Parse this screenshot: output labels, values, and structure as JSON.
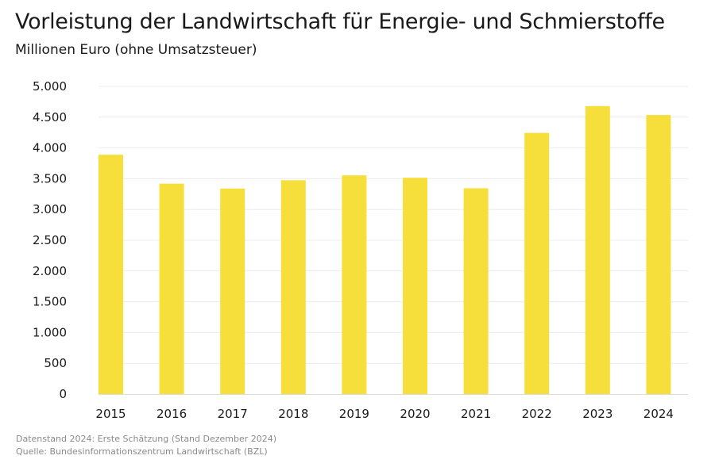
{
  "chart_data": {
    "type": "bar",
    "title": "Vorleistung der Landwirtschaft für Energie- und Schmierstoffe",
    "subtitle": "Millionen Euro (ohne Umsatzsteuer)",
    "xlabel": "",
    "ylabel": "",
    "categories": [
      "2015",
      "2016",
      "2017",
      "2018",
      "2019",
      "2020",
      "2021",
      "2022",
      "2023",
      "2024"
    ],
    "values": [
      3890,
      3420,
      3340,
      3475,
      3555,
      3515,
      3345,
      4245,
      4680,
      4535
    ],
    "ylim": [
      0,
      5000
    ],
    "yticks": [
      0,
      500,
      1000,
      1500,
      2000,
      2500,
      3000,
      3500,
      4000,
      4500,
      5000
    ],
    "ytick_labels": [
      "0",
      "500",
      "1.000",
      "1.500",
      "2.000",
      "2.500",
      "3.000",
      "3.500",
      "4.000",
      "4.500",
      "5.000"
    ],
    "grid": true,
    "legend": "none",
    "bar_color": "#f7df3b"
  },
  "footer": {
    "note": "Datenstand 2024: Erste Schätzung (Stand Dezember 2024)",
    "source": "Quelle: Bundesinformationszentrum Landwirtschaft (BZL)"
  }
}
